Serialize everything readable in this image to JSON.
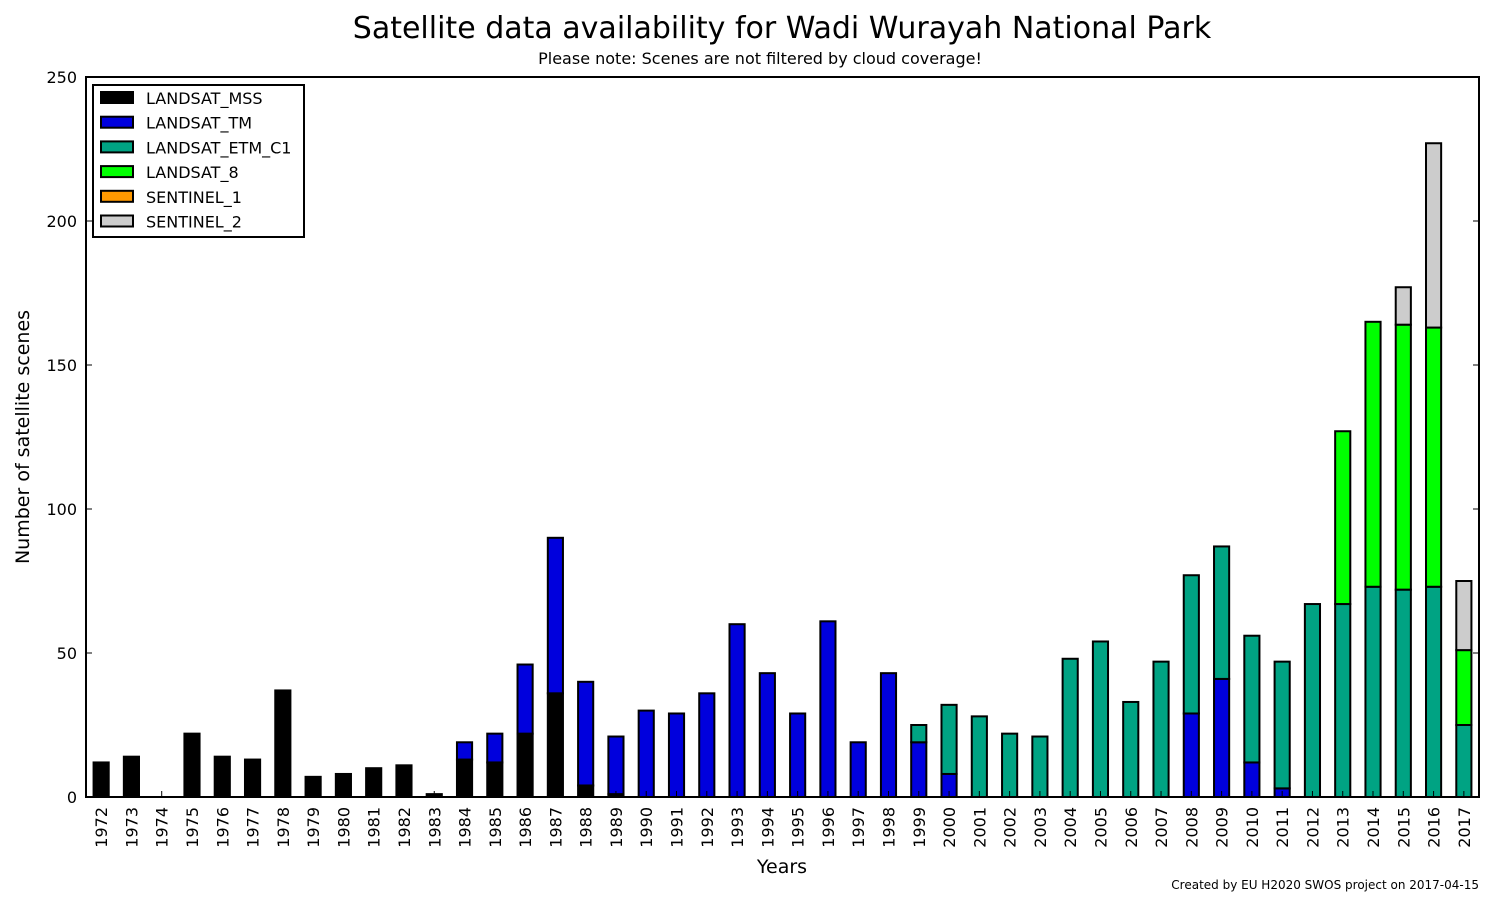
{
  "chart_data": {
    "type": "bar",
    "stacked": true,
    "title": "Satellite data availability for Wadi Wurayah National Park",
    "subtitle": "Please note: Scenes are not filtered by cloud coverage!",
    "xlabel": "Years",
    "ylabel": "Number of satellite scenes",
    "ylim": [
      0,
      250
    ],
    "yticks": [
      0,
      50,
      100,
      150,
      200,
      250
    ],
    "legend_position": "upper-left",
    "credit": "Created by EU H2020 SWOS project on 2017-04-15",
    "categories": [
      "1972",
      "1973",
      "1974",
      "1975",
      "1976",
      "1977",
      "1978",
      "1979",
      "1980",
      "1981",
      "1982",
      "1983",
      "1984",
      "1985",
      "1986",
      "1987",
      "1988",
      "1989",
      "1990",
      "1991",
      "1992",
      "1993",
      "1994",
      "1995",
      "1996",
      "1997",
      "1998",
      "1999",
      "2000",
      "2001",
      "2002",
      "2003",
      "2004",
      "2005",
      "2006",
      "2007",
      "2008",
      "2009",
      "2010",
      "2011",
      "2012",
      "2013",
      "2014",
      "2015",
      "2016",
      "2017"
    ],
    "series": [
      {
        "name": "LANDSAT_MSS",
        "color": "#000000",
        "values": [
          12,
          14,
          0,
          22,
          14,
          13,
          37,
          7,
          8,
          10,
          11,
          1,
          13,
          12,
          22,
          36,
          4,
          1,
          0,
          0,
          0,
          0,
          0,
          0,
          0,
          0,
          0,
          0,
          0,
          0,
          0,
          0,
          0,
          0,
          0,
          0,
          0,
          0,
          0,
          0,
          0,
          0,
          0,
          0,
          0,
          0
        ]
      },
      {
        "name": "LANDSAT_TM",
        "color": "#0000dd",
        "values": [
          0,
          0,
          0,
          0,
          0,
          0,
          0,
          0,
          0,
          0,
          0,
          0,
          6,
          10,
          24,
          54,
          36,
          20,
          30,
          29,
          36,
          60,
          43,
          29,
          61,
          19,
          43,
          19,
          8,
          0,
          0,
          0,
          0,
          0,
          0,
          0,
          29,
          41,
          12,
          3,
          0,
          0,
          0,
          0,
          0,
          0
        ]
      },
      {
        "name": "LANDSAT_ETM_C1",
        "color": "#00a383",
        "values": [
          0,
          0,
          0,
          0,
          0,
          0,
          0,
          0,
          0,
          0,
          0,
          0,
          0,
          0,
          0,
          0,
          0,
          0,
          0,
          0,
          0,
          0,
          0,
          0,
          0,
          0,
          0,
          6,
          24,
          28,
          22,
          21,
          48,
          54,
          33,
          47,
          48,
          46,
          44,
          44,
          67,
          67,
          73,
          72,
          73,
          25
        ]
      },
      {
        "name": "LANDSAT_8",
        "color": "#00ff00",
        "values": [
          0,
          0,
          0,
          0,
          0,
          0,
          0,
          0,
          0,
          0,
          0,
          0,
          0,
          0,
          0,
          0,
          0,
          0,
          0,
          0,
          0,
          0,
          0,
          0,
          0,
          0,
          0,
          0,
          0,
          0,
          0,
          0,
          0,
          0,
          0,
          0,
          0,
          0,
          0,
          0,
          0,
          60,
          92,
          92,
          90,
          26
        ]
      },
      {
        "name": "SENTINEL_1",
        "color": "#ff9900",
        "values": [
          0,
          0,
          0,
          0,
          0,
          0,
          0,
          0,
          0,
          0,
          0,
          0,
          0,
          0,
          0,
          0,
          0,
          0,
          0,
          0,
          0,
          0,
          0,
          0,
          0,
          0,
          0,
          0,
          0,
          0,
          0,
          0,
          0,
          0,
          0,
          0,
          0,
          0,
          0,
          0,
          0,
          0,
          0,
          0,
          0,
          0
        ]
      },
      {
        "name": "SENTINEL_2",
        "color": "#cccccc",
        "values": [
          0,
          0,
          0,
          0,
          0,
          0,
          0,
          0,
          0,
          0,
          0,
          0,
          0,
          0,
          0,
          0,
          0,
          0,
          0,
          0,
          0,
          0,
          0,
          0,
          0,
          0,
          0,
          0,
          0,
          0,
          0,
          0,
          0,
          0,
          0,
          0,
          0,
          0,
          0,
          0,
          0,
          0,
          0,
          13,
          64,
          24
        ]
      }
    ]
  }
}
